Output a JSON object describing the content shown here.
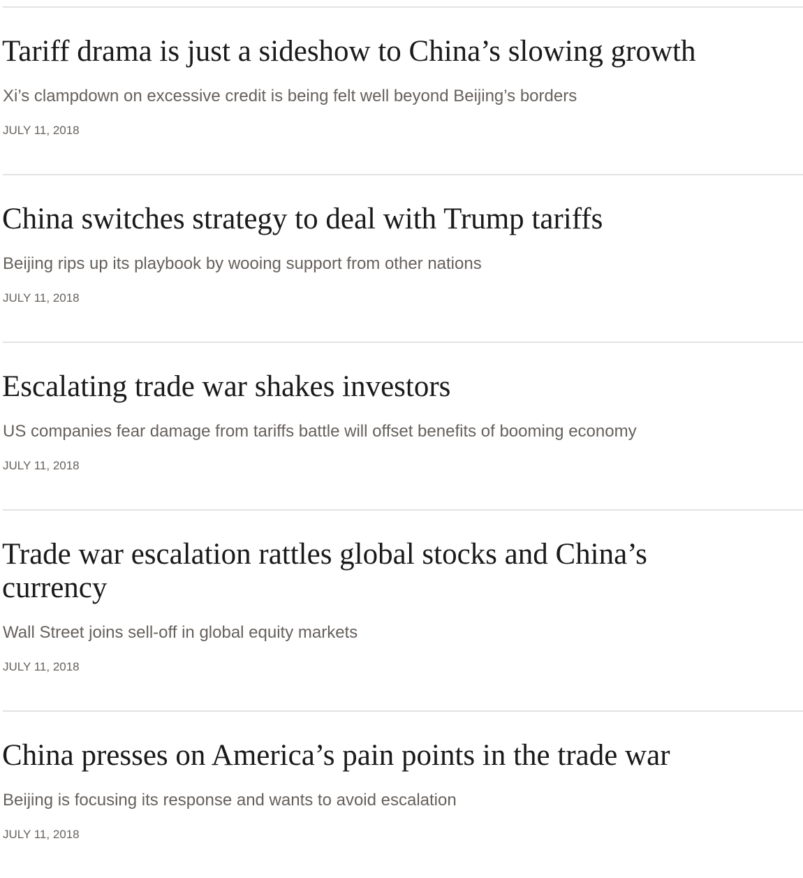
{
  "articles": [
    {
      "title": "Tariff drama is just a sideshow to China’s slowing growth",
      "subtitle": "Xi’s clampdown on excessive credit is being felt well beyond Beijing’s borders",
      "date": "JULY 11, 2018"
    },
    {
      "title": "China switches strategy to deal with Trump tariffs",
      "subtitle": "Beijing rips up its playbook by wooing support from other nations",
      "date": "JULY 11, 2018"
    },
    {
      "title": "Escalating trade war shakes investors",
      "subtitle": "US companies fear damage from tariffs battle will offset benefits of booming economy",
      "date": "JULY 11, 2018"
    },
    {
      "title": "Trade war escalation rattles global stocks and China’s currency",
      "subtitle": "Wall Street joins sell-off in global equity markets",
      "date": "JULY 11, 2018"
    },
    {
      "title": "China presses on America’s pain points in the trade war",
      "subtitle": "Beijing is focusing its response and wants to avoid escalation",
      "date": "JULY 11, 2018"
    }
  ]
}
